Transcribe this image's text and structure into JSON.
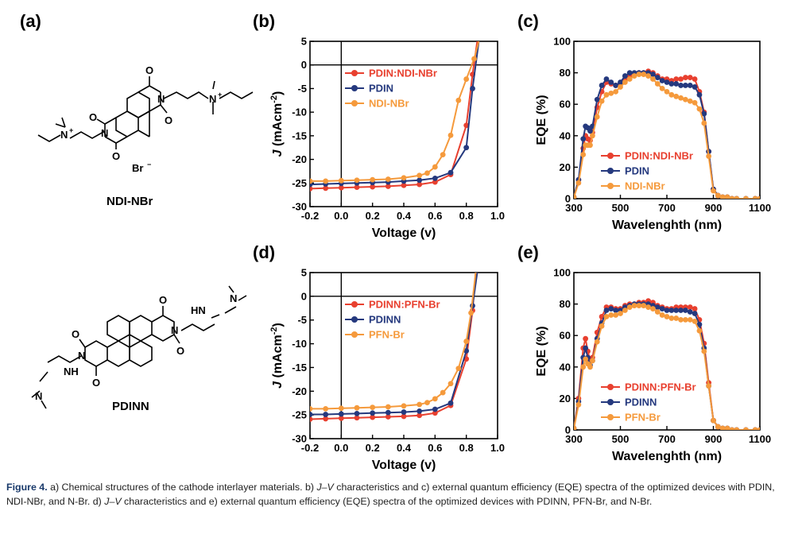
{
  "colors": {
    "red": "#e8402f",
    "blue": "#25397e",
    "orange": "#f59a3c"
  },
  "panels": {
    "a": {
      "letter": "(a)"
    },
    "b": {
      "letter": "(b)"
    },
    "c": {
      "letter": "(c)"
    },
    "d": {
      "letter": "(d)"
    },
    "e": {
      "letter": "(e)"
    }
  },
  "molecules": {
    "ndi": {
      "name": "NDI-NBr",
      "counterion": "Br",
      "atoms": [
        "O",
        "O",
        "O",
        "O",
        "N",
        "N",
        "N",
        "N"
      ]
    },
    "pdinn": {
      "name": "PDINN",
      "atoms": [
        "O",
        "O",
        "O",
        "O",
        "N",
        "N",
        "NH",
        "HN",
        "N",
        "N"
      ]
    }
  },
  "caption": {
    "title": "Figure 4.",
    "part1": " a) Chemical structures of the cathode interlayer materials. b) ",
    "jv1": "J–V",
    "part2": " characteristics and c) external quantum efficiency (EQE) spectra of the optimized devices with PDIN, NDI-NBr, and N-Br. d) ",
    "jv2": "J–V",
    "part3": " characteristics and e) external quantum efficiency (EQE) spectra of the optimized devices with PDINN, PFN-Br, and N-Br."
  },
  "chart_data": [
    {
      "id": "b",
      "type": "line",
      "xlabel": "Voltage (v)",
      "ylabel": "J (mAcm-2)",
      "xlim": [
        -0.2,
        1.0
      ],
      "ylim": [
        -30,
        5
      ],
      "xticks": [
        "-0.2",
        "0.0",
        "0.2",
        "0.4",
        "0.6",
        "0.8",
        "1.0"
      ],
      "yticks": [
        "5",
        "0",
        "-5",
        "-10",
        "-15",
        "-20",
        "-25",
        "-30"
      ],
      "series": [
        {
          "name": "PDIN:NDI-NBr",
          "color": "#e8402f",
          "x": [
            -0.2,
            -0.1,
            0.0,
            0.1,
            0.2,
            0.3,
            0.4,
            0.5,
            0.6,
            0.7,
            0.8,
            0.84,
            0.87
          ],
          "y": [
            -26.2,
            -26.1,
            -26.0,
            -25.9,
            -25.8,
            -25.7,
            -25.5,
            -25.3,
            -24.8,
            -23.2,
            -12.8,
            -2.0,
            5.0
          ]
        },
        {
          "name": "PDIN",
          "color": "#25397e",
          "x": [
            -0.2,
            -0.1,
            0.0,
            0.1,
            0.2,
            0.3,
            0.4,
            0.5,
            0.6,
            0.7,
            0.8,
            0.84,
            0.88
          ],
          "y": [
            -25.3,
            -25.2,
            -25.1,
            -25.0,
            -24.9,
            -24.8,
            -24.6,
            -24.4,
            -24.0,
            -22.8,
            -17.5,
            -5.0,
            5.0
          ]
        },
        {
          "name": "NDI-NBr",
          "color": "#f59a3c",
          "x": [
            -0.2,
            -0.1,
            0.0,
            0.1,
            0.2,
            0.3,
            0.4,
            0.5,
            0.55,
            0.6,
            0.65,
            0.7,
            0.75,
            0.8,
            0.85,
            0.88
          ],
          "y": [
            -24.6,
            -24.6,
            -24.5,
            -24.4,
            -24.3,
            -24.2,
            -23.9,
            -23.4,
            -22.9,
            -21.6,
            -19.0,
            -14.9,
            -7.5,
            -3.0,
            1.3,
            5.0
          ]
        }
      ]
    },
    {
      "id": "c",
      "type": "line",
      "xlabel": "Wavelenghth (nm)",
      "ylabel": "EQE (%)",
      "xlim": [
        300,
        1100
      ],
      "ylim": [
        0,
        100
      ],
      "xticks": [
        "300",
        "500",
        "700",
        "900",
        "1100"
      ],
      "yticks": [
        "0",
        "20",
        "40",
        "60",
        "80",
        "100"
      ],
      "series": [
        {
          "name": "PDIN:NDI-NBr",
          "color": "#e8402f",
          "x": [
            300,
            320,
            340,
            350,
            360,
            370,
            380,
            400,
            420,
            440,
            460,
            480,
            500,
            520,
            540,
            560,
            580,
            600,
            620,
            640,
            660,
            680,
            700,
            720,
            740,
            760,
            780,
            800,
            820,
            840,
            860,
            880,
            900,
            920,
            940,
            960,
            980,
            1000,
            1040,
            1080,
            1100
          ],
          "y": [
            1,
            12,
            32,
            40,
            38,
            37,
            42,
            58,
            68,
            74,
            73,
            72,
            73,
            76,
            78,
            79,
            80,
            80,
            81,
            80,
            78,
            76,
            76,
            75,
            76,
            76,
            77,
            77,
            76,
            68,
            55,
            30,
            6,
            2,
            1,
            1,
            0,
            0,
            0,
            0,
            0
          ]
        },
        {
          "name": "PDIN",
          "color": "#25397e",
          "x": [
            300,
            320,
            340,
            350,
            360,
            370,
            380,
            400,
            420,
            440,
            460,
            480,
            500,
            520,
            540,
            560,
            580,
            600,
            620,
            640,
            660,
            680,
            700,
            720,
            740,
            760,
            780,
            800,
            820,
            840,
            860,
            880,
            900,
            920,
            940,
            960,
            980,
            1000,
            1040,
            1080,
            1100
          ],
          "y": [
            1,
            12,
            38,
            46,
            45,
            43,
            46,
            63,
            72,
            76,
            74,
            72,
            74,
            78,
            80,
            80,
            80,
            80,
            80,
            79,
            77,
            75,
            74,
            73,
            73,
            72,
            72,
            72,
            71,
            66,
            54,
            30,
            6,
            2,
            1,
            1,
            0,
            0,
            0,
            0,
            0
          ]
        },
        {
          "name": "NDI-NBr",
          "color": "#f59a3c",
          "x": [
            300,
            320,
            340,
            350,
            360,
            370,
            380,
            400,
            420,
            440,
            460,
            480,
            500,
            520,
            540,
            560,
            580,
            600,
            620,
            640,
            660,
            680,
            700,
            720,
            740,
            760,
            780,
            800,
            820,
            840,
            860,
            880,
            900,
            920,
            940,
            960,
            980,
            1000,
            1040,
            1080,
            1100
          ],
          "y": [
            1,
            10,
            28,
            34,
            34,
            34,
            40,
            52,
            62,
            66,
            67,
            68,
            71,
            74,
            76,
            78,
            79,
            79,
            78,
            76,
            73,
            70,
            68,
            66,
            65,
            64,
            63,
            62,
            61,
            57,
            48,
            27,
            5,
            2,
            1,
            1,
            0,
            0,
            0,
            0,
            0
          ]
        }
      ]
    },
    {
      "id": "d",
      "type": "line",
      "xlabel": "Voltage (v)",
      "ylabel": "J (mAcm-2)",
      "xlim": [
        -0.2,
        1.0
      ],
      "ylim": [
        -30,
        5
      ],
      "xticks": [
        "-0.2",
        "0.0",
        "0.2",
        "0.4",
        "0.6",
        "0.8",
        "1.0"
      ],
      "yticks": [
        "5",
        "0",
        "-5",
        "-10",
        "-15",
        "-20",
        "-25",
        "-30"
      ],
      "series": [
        {
          "name": "PDINN:PFN-Br",
          "color": "#e8402f",
          "x": [
            -0.2,
            -0.1,
            0.0,
            0.1,
            0.2,
            0.3,
            0.4,
            0.5,
            0.6,
            0.7,
            0.8,
            0.84,
            0.86
          ],
          "y": [
            -25.9,
            -25.8,
            -25.7,
            -25.6,
            -25.5,
            -25.4,
            -25.3,
            -25.1,
            -24.6,
            -23.0,
            -13.2,
            -3.0,
            5.0
          ]
        },
        {
          "name": "PDINN",
          "color": "#25397e",
          "x": [
            -0.2,
            -0.1,
            0.0,
            0.1,
            0.2,
            0.3,
            0.4,
            0.5,
            0.6,
            0.7,
            0.8,
            0.84,
            0.87
          ],
          "y": [
            -24.9,
            -24.9,
            -24.8,
            -24.7,
            -24.6,
            -24.5,
            -24.4,
            -24.2,
            -23.8,
            -22.5,
            -11.5,
            -2.0,
            5.0
          ]
        },
        {
          "name": "PFN-Br",
          "color": "#f59a3c",
          "x": [
            -0.2,
            -0.1,
            0.0,
            0.1,
            0.2,
            0.3,
            0.4,
            0.5,
            0.55,
            0.6,
            0.65,
            0.7,
            0.75,
            0.8,
            0.83,
            0.86
          ],
          "y": [
            -23.7,
            -23.7,
            -23.6,
            -23.5,
            -23.4,
            -23.3,
            -23.1,
            -22.8,
            -22.4,
            -21.6,
            -20.3,
            -18.4,
            -15.2,
            -9.5,
            -3.5,
            5.0
          ]
        }
      ]
    },
    {
      "id": "e",
      "type": "line",
      "xlabel": "Wavelenghth (nm)",
      "ylabel": "EQE (%)",
      "xlim": [
        300,
        1100
      ],
      "ylim": [
        0,
        100
      ],
      "xticks": [
        "300",
        "500",
        "700",
        "900",
        "1100"
      ],
      "yticks": [
        "0",
        "20",
        "40",
        "60",
        "80",
        "100"
      ],
      "series": [
        {
          "name": "PDINN:PFN-Br",
          "color": "#e8402f",
          "x": [
            300,
            320,
            340,
            350,
            360,
            370,
            380,
            400,
            420,
            440,
            460,
            480,
            500,
            520,
            540,
            560,
            580,
            600,
            620,
            640,
            660,
            680,
            700,
            720,
            740,
            760,
            780,
            800,
            820,
            840,
            860,
            880,
            900,
            920,
            940,
            960,
            980,
            1000,
            1040,
            1080,
            1100
          ],
          "y": [
            1,
            20,
            52,
            58,
            50,
            44,
            46,
            62,
            72,
            78,
            78,
            77,
            77,
            79,
            80,
            80,
            81,
            81,
            82,
            81,
            79,
            78,
            77,
            77,
            78,
            78,
            78,
            78,
            77,
            70,
            55,
            30,
            6,
            2,
            1,
            1,
            0,
            0,
            0,
            0,
            0
          ]
        },
        {
          "name": "PDINN",
          "color": "#25397e",
          "x": [
            300,
            320,
            340,
            350,
            360,
            370,
            380,
            400,
            420,
            440,
            460,
            480,
            500,
            520,
            540,
            560,
            580,
            600,
            620,
            640,
            660,
            680,
            700,
            720,
            740,
            760,
            780,
            800,
            820,
            840,
            860,
            880,
            900,
            920,
            940,
            960,
            980,
            1000,
            1040,
            1080,
            1100
          ],
          "y": [
            1,
            18,
            46,
            52,
            46,
            41,
            44,
            58,
            68,
            76,
            77,
            76,
            76,
            78,
            79,
            80,
            80,
            80,
            80,
            79,
            78,
            77,
            76,
            76,
            76,
            76,
            76,
            75,
            74,
            67,
            52,
            28,
            6,
            2,
            1,
            1,
            0,
            0,
            0,
            0,
            0
          ]
        },
        {
          "name": "PFN-Br",
          "color": "#f59a3c",
          "x": [
            300,
            320,
            340,
            350,
            360,
            370,
            380,
            400,
            420,
            440,
            460,
            480,
            500,
            520,
            540,
            560,
            580,
            600,
            620,
            640,
            660,
            680,
            700,
            720,
            740,
            760,
            780,
            800,
            820,
            840,
            860,
            880,
            900,
            920,
            940,
            960,
            980,
            1000,
            1040,
            1080,
            1100
          ],
          "y": [
            1,
            16,
            40,
            45,
            42,
            40,
            44,
            56,
            66,
            72,
            73,
            73,
            74,
            76,
            78,
            79,
            79,
            79,
            78,
            77,
            75,
            73,
            72,
            71,
            71,
            70,
            70,
            70,
            69,
            63,
            50,
            28,
            6,
            2,
            1,
            1,
            0,
            0,
            0,
            0,
            0
          ]
        }
      ]
    }
  ]
}
